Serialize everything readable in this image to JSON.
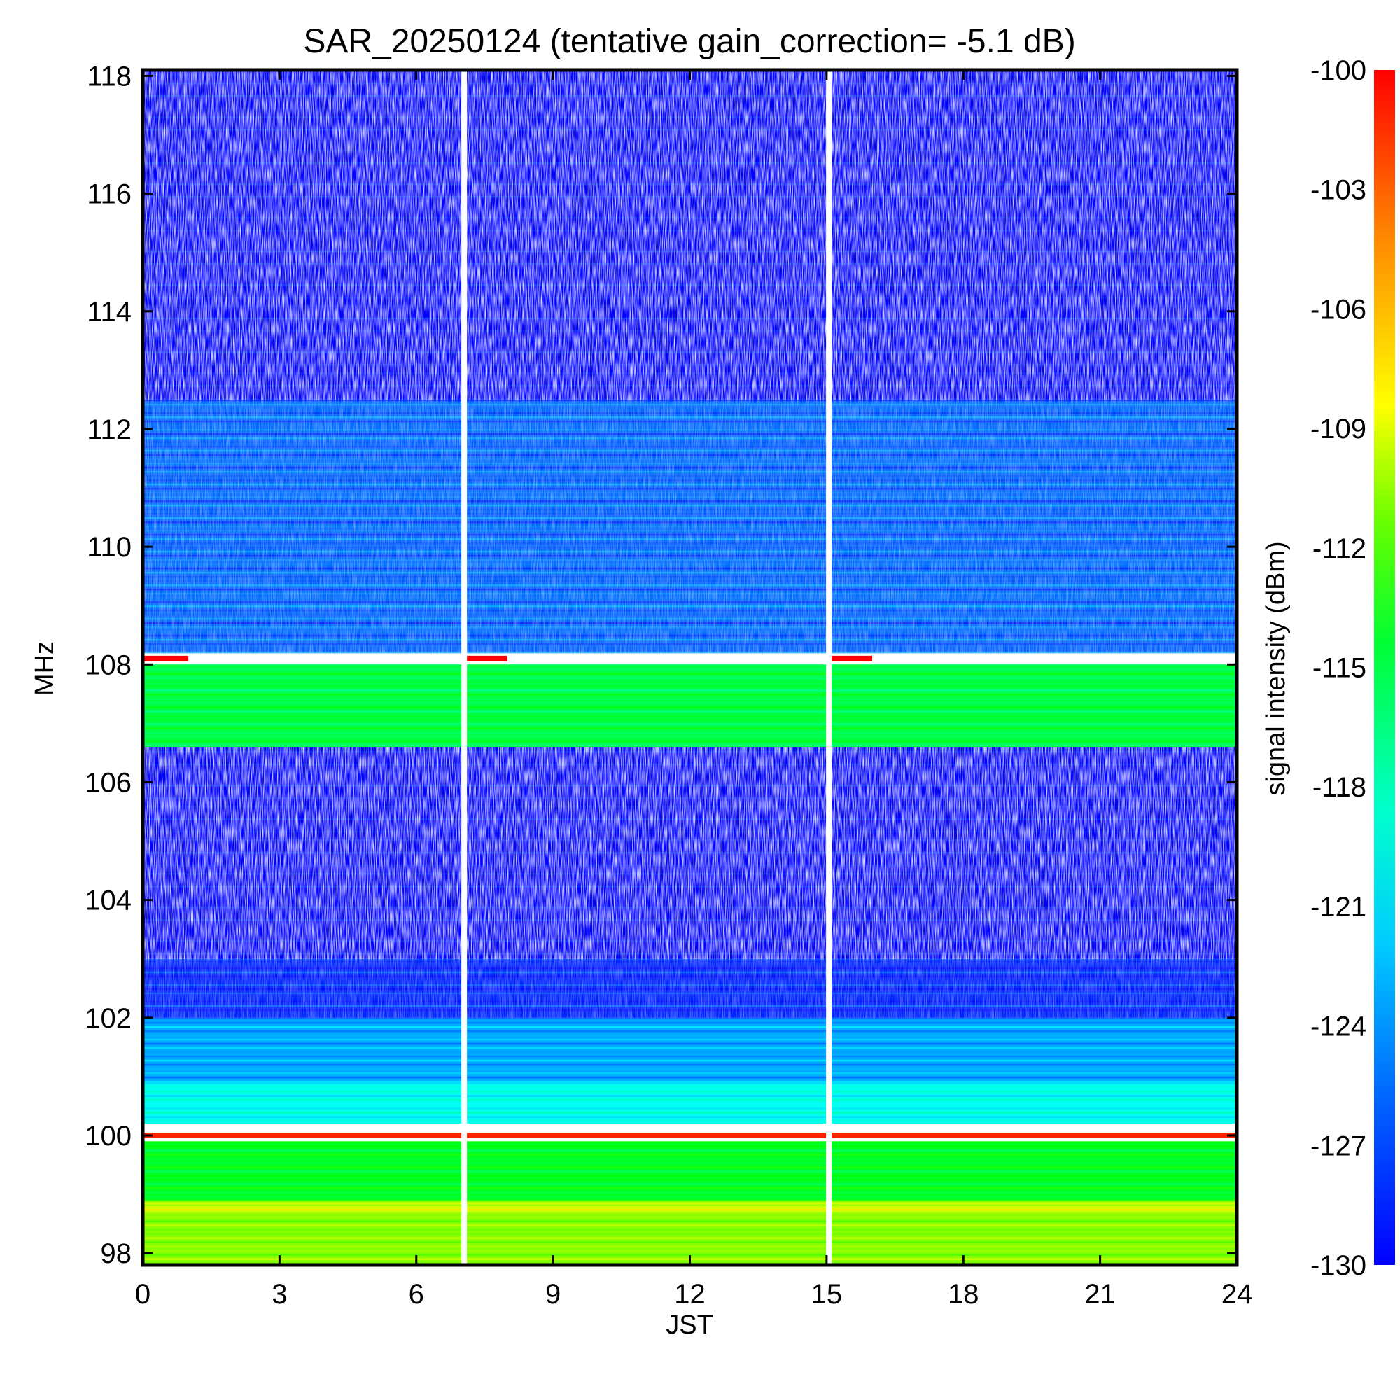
{
  "chart_data": {
    "type": "heatmap",
    "title": "SAR_20250124 (tentative gain_correction= -5.1 dB)",
    "xlabel": "JST",
    "ylabel": "MHz",
    "colorbar_label": "signal intensity (dBm)",
    "xlim": [
      0,
      24
    ],
    "ylim": [
      97.8,
      118.1
    ],
    "x_ticks": [
      0,
      3,
      6,
      9,
      12,
      15,
      18,
      21,
      24
    ],
    "y_ticks": [
      98,
      100,
      102,
      104,
      106,
      108,
      110,
      112,
      114,
      116,
      118
    ],
    "colorbar_range": [
      -130,
      -100
    ],
    "colorbar_ticks": [
      -100,
      -103,
      -106,
      -109,
      -112,
      -115,
      -118,
      -121,
      -124,
      -127,
      -130
    ],
    "colormap": [
      "#0000ff",
      "#0080ff",
      "#00ffff",
      "#00ff80",
      "#00ff00",
      "#80ff00",
      "#ffff00",
      "#ff8000",
      "#ff0000"
    ],
    "data_gaps_hours": [
      7.05,
      15.05
    ],
    "strong_signal_lines": [
      {
        "freq_mhz": 108.1,
        "level_dbm": -100,
        "hours": [
          [
            0,
            1
          ],
          [
            7.1,
            8
          ],
          [
            15.1,
            16
          ]
        ]
      },
      {
        "freq_mhz": 100.0,
        "level_dbm": -101,
        "hours": [
          [
            0,
            24
          ]
        ]
      }
    ],
    "bands": [
      {
        "from_mhz": 97.8,
        "to_mhz": 98.7,
        "level_dbm": -111,
        "note": "yellow-green"
      },
      {
        "from_mhz": 98.7,
        "to_mhz": 98.9,
        "level_dbm": -109,
        "note": "yellow"
      },
      {
        "from_mhz": 98.9,
        "to_mhz": 99.9,
        "level_dbm": -116,
        "note": "green"
      },
      {
        "from_mhz": 100.2,
        "to_mhz": 100.9,
        "level_dbm": -122,
        "note": "cyan-green"
      },
      {
        "from_mhz": 100.9,
        "to_mhz": 102.0,
        "level_dbm": -125,
        "note": "cyan-blue"
      },
      {
        "from_mhz": 102.0,
        "to_mhz": 103.0,
        "level_dbm": -129,
        "note": "blue"
      },
      {
        "from_mhz": 103.0,
        "to_mhz": 106.6,
        "level_dbm": -131,
        "note": "sparse blue/white"
      },
      {
        "from_mhz": 106.6,
        "to_mhz": 108.0,
        "level_dbm": -117,
        "note": "green"
      },
      {
        "from_mhz": 108.2,
        "to_mhz": 112.5,
        "level_dbm": -127,
        "note": "blue"
      },
      {
        "from_mhz": 112.5,
        "to_mhz": 118.1,
        "level_dbm": -131,
        "note": "sparse blue/white"
      }
    ]
  }
}
